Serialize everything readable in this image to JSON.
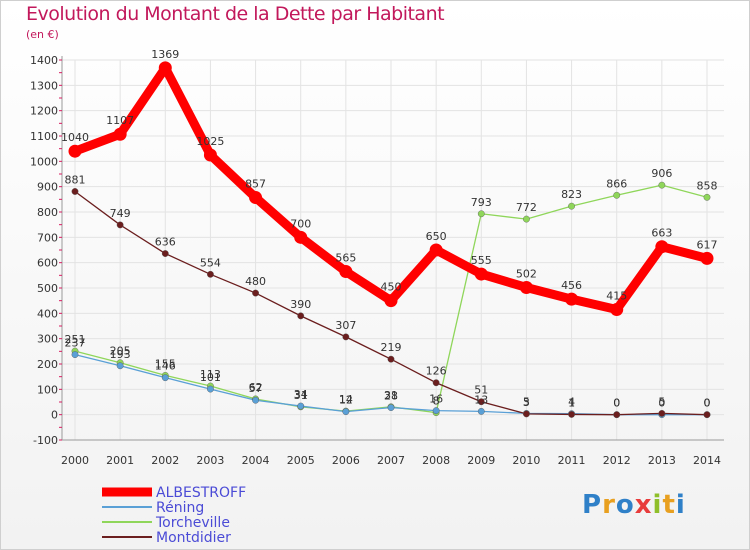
{
  "chart_data": {
    "type": "line",
    "title": "Evolution du Montant de la Dette par Habitant",
    "subtitle": "(en €)",
    "xlabel": "",
    "ylabel": "",
    "categories": [
      "2000",
      "2001",
      "2002",
      "2003",
      "2004",
      "2005",
      "2006",
      "2007",
      "2008",
      "2009",
      "2010",
      "2011",
      "2012",
      "2013",
      "2014"
    ],
    "ylim": [
      -100,
      1400
    ],
    "yticks": [
      -100,
      0,
      100,
      200,
      300,
      400,
      500,
      600,
      700,
      800,
      900,
      1000,
      1100,
      1200,
      1300,
      1400
    ],
    "grid": true,
    "legend_position": "bottom-left",
    "series": [
      {
        "name": "ALBESTROFF",
        "color": "#ff0000",
        "values": [
          1040,
          1107,
          1369,
          1025,
          857,
          700,
          565,
          450,
          650,
          555,
          502,
          456,
          415,
          663,
          617
        ]
      },
      {
        "name": "Réning",
        "color": "#5aa0d6",
        "values": [
          237,
          193,
          146,
          101,
          57,
          34,
          12,
          28,
          16,
          13,
          5,
          4,
          0,
          0,
          0
        ]
      },
      {
        "name": "Torcheville",
        "color": "#8fd65a",
        "values": [
          251,
          205,
          155,
          113,
          62,
          31,
          14,
          31,
          8,
          793,
          772,
          823,
          866,
          906,
          858
        ]
      },
      {
        "name": "Montdidier",
        "color": "#6b1e1e",
        "values": [
          881,
          749,
          636,
          554,
          480,
          390,
          307,
          219,
          126,
          51,
          3,
          1,
          0,
          5,
          0
        ]
      }
    ]
  },
  "logo": {
    "text": "Proxiti"
  }
}
